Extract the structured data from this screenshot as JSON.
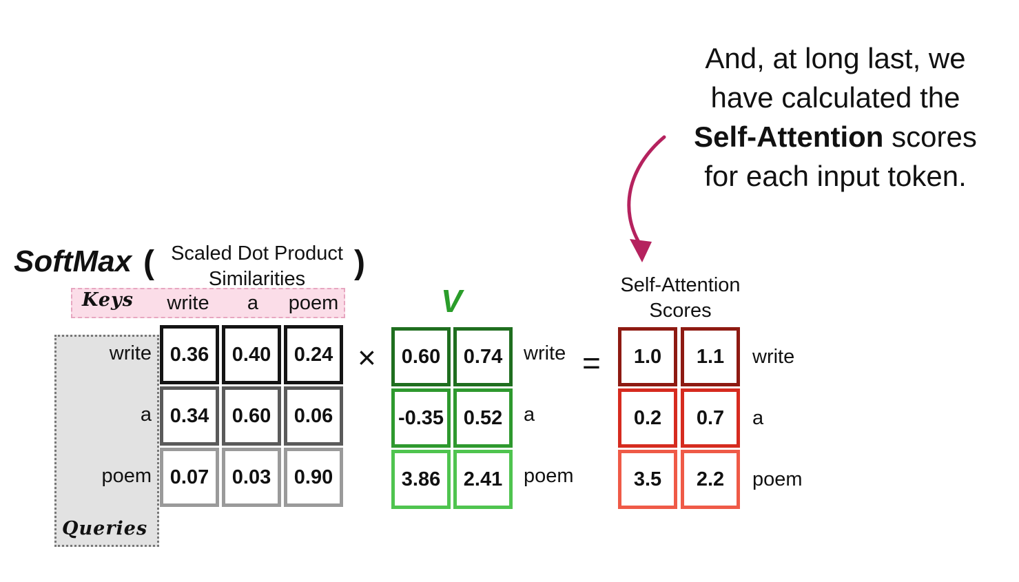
{
  "caption": {
    "line1": "And, at long last, we",
    "line2": "have calculated the",
    "line3_bold": "Self-Attention",
    "line3_rest": " scores",
    "line4": "for each input token."
  },
  "softmax": {
    "label": "SoftMax",
    "open": "(",
    "close": ")",
    "inner_line1": "Scaled Dot Product",
    "inner_line2": "Similarities"
  },
  "keys": {
    "label": "Keys",
    "tokens": [
      "write",
      "a",
      "poem"
    ]
  },
  "queries": {
    "label": "Queries",
    "tokens": [
      "write",
      "a",
      "poem"
    ]
  },
  "similarities": [
    [
      "0.36",
      "0.40",
      "0.24"
    ],
    [
      "0.34",
      "0.60",
      "0.06"
    ],
    [
      "0.07",
      "0.03",
      "0.90"
    ]
  ],
  "operators": {
    "times": "×",
    "equals": "="
  },
  "values": {
    "label": "V",
    "rows": [
      [
        "0.60",
        "0.74"
      ],
      [
        "-0.35",
        "0.52"
      ],
      [
        "3.86",
        "2.41"
      ]
    ],
    "row_labels": [
      "write",
      "a",
      "poem"
    ]
  },
  "self_attention": {
    "title_line1": "Self-Attention",
    "title_line2": "Scores",
    "rows": [
      [
        "1.0",
        "1.1"
      ],
      [
        "0.2",
        "0.7"
      ],
      [
        "3.5",
        "2.2"
      ]
    ],
    "row_labels": [
      "write",
      "a",
      "poem"
    ]
  },
  "colors": {
    "keys_fill": "#fbdde8",
    "queries_fill": "#e2e2e2",
    "values_green": "#2a9d2a",
    "scores_red": "#d62b1f",
    "arrow": "#b5225e"
  }
}
